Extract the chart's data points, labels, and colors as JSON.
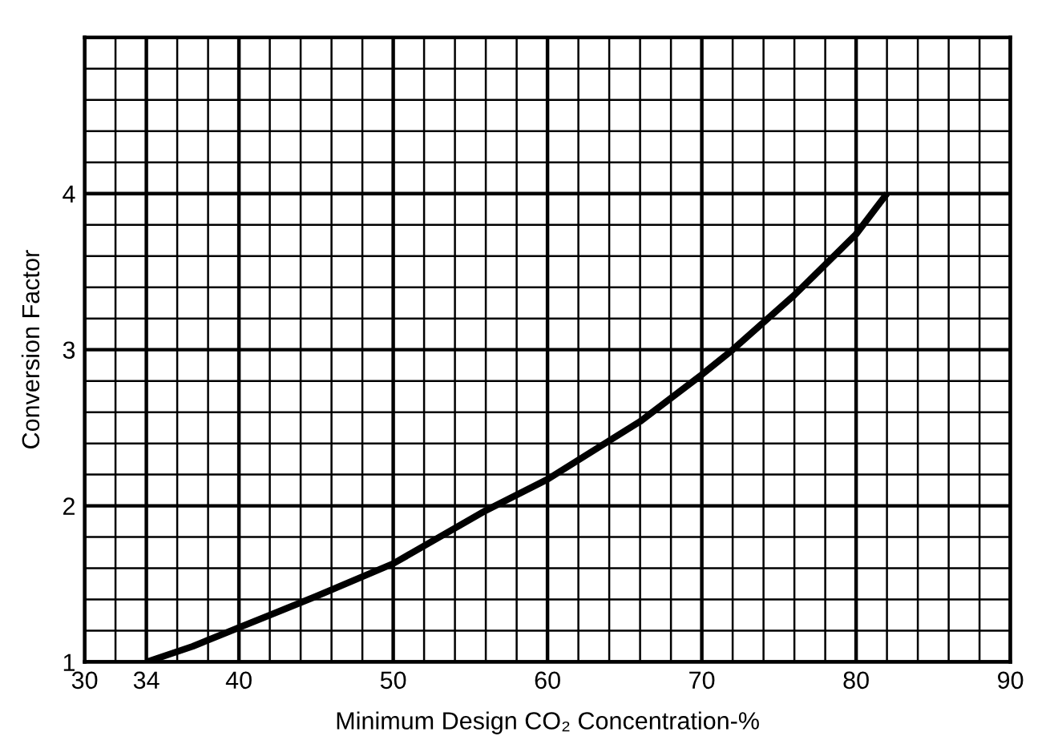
{
  "chart_data": {
    "type": "line",
    "xlabel": "Minimum Design CO₂ Concentration-%",
    "ylabel": "Conversion Factor",
    "x": [
      34,
      37,
      40,
      45,
      50,
      56,
      60,
      66,
      70,
      72,
      76,
      80,
      82
    ],
    "series": [
      {
        "color": "#000000",
        "values": [
          1.0,
          1.1,
          1.22,
          1.42,
          1.63,
          1.97,
          2.17,
          2.54,
          2.84,
          3.0,
          3.35,
          3.74,
          4.0
        ]
      }
    ],
    "xlim": [
      30,
      90
    ],
    "ylim": [
      1,
      5
    ],
    "xticks": [
      30,
      {
        "value": 32,
        "label": null
      },
      34,
      {
        "value": 36,
        "label": null
      },
      {
        "value": 38,
        "label": null
      },
      40,
      {
        "value": 42,
        "label": null
      },
      {
        "value": 44,
        "label": null
      },
      {
        "value": 46,
        "label": null
      },
      {
        "value": 48,
        "label": null
      },
      50,
      {
        "value": 52,
        "label": null
      },
      {
        "value": 54,
        "label": null
      },
      {
        "value": 56,
        "label": null
      },
      {
        "value": 58,
        "label": null
      },
      60,
      {
        "value": 62,
        "label": null
      },
      {
        "value": 64,
        "label": null
      },
      {
        "value": 66,
        "label": null
      },
      {
        "value": 68,
        "label": null
      },
      70,
      {
        "value": 72,
        "label": null
      },
      {
        "value": 74,
        "label": null
      },
      {
        "value": 76,
        "label": null
      },
      {
        "value": 78,
        "label": null
      },
      80,
      {
        "value": 82,
        "label": null
      },
      {
        "value": 84,
        "label": null
      },
      {
        "value": 86,
        "label": null
      },
      {
        "value": 88,
        "label": null
      },
      90
    ],
    "yticks": [
      1,
      {
        "value": 1.2,
        "label": null
      },
      {
        "value": 1.4,
        "label": null
      },
      {
        "value": 1.6,
        "label": null
      },
      {
        "value": 1.8,
        "label": null
      },
      2,
      {
        "value": 2.2,
        "label": null
      },
      {
        "value": 2.4,
        "label": null
      },
      {
        "value": 2.6,
        "label": null
      },
      {
        "value": 2.8,
        "label": null
      },
      3,
      {
        "value": 3.2,
        "label": null
      },
      {
        "value": 3.4,
        "label": null
      },
      {
        "value": 3.6,
        "label": null
      },
      {
        "value": 3.8,
        "label": null
      },
      4,
      {
        "value": 4.2,
        "label": null
      },
      {
        "value": 4.4,
        "label": null
      },
      {
        "value": 4.6,
        "label": null
      },
      {
        "value": 4.8,
        "label": null
      },
      {
        "value": 5,
        "label": null
      }
    ],
    "grid": true,
    "marker": "none",
    "line_style": "solid"
  }
}
